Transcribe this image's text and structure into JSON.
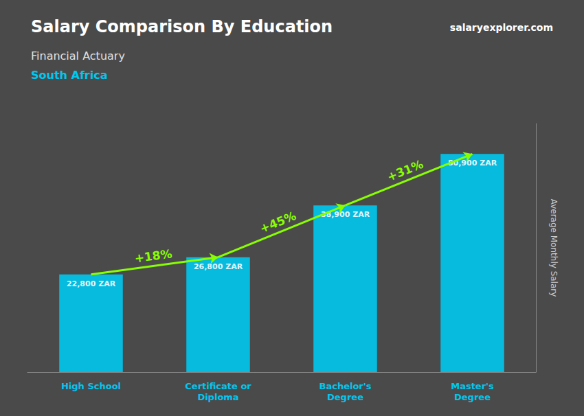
{
  "chart_data": {
    "type": "bar",
    "title": "Salary Comparison By Education",
    "subtitle": [
      "Financial Actuary",
      "South Africa"
    ],
    "ylabel": "Average Monthly Salary",
    "categories": [
      "High School",
      "Certificate or\nDiploma",
      "Bachelor's\nDegree",
      "Master's\nDegree"
    ],
    "values": [
      22800,
      26800,
      38900,
      50900
    ],
    "value_labels": [
      "22,800 ZAR",
      "26,800 ZAR",
      "38,900 ZAR",
      "50,900 ZAR"
    ],
    "data_labels": true,
    "color": "#00c8f0",
    "ylim": [
      0,
      58000
    ],
    "tick_labels": "x",
    "grid": false,
    "annotations": [
      {
        "text": "salaryexplorer.com"
      },
      {
        "from": "High School",
        "to": "Certificate or\nDiploma",
        "text": "+18%",
        "color": "#88ff00"
      },
      {
        "from": "Certificate or\nDiploma",
        "to": "Bachelor's\nDegree",
        "text": "+45%",
        "color": "#88ff00"
      },
      {
        "from": "Bachelor's\nDegree",
        "to": "Master's\nDegree",
        "text": "+31%",
        "color": "#88ff00"
      }
    ]
  }
}
